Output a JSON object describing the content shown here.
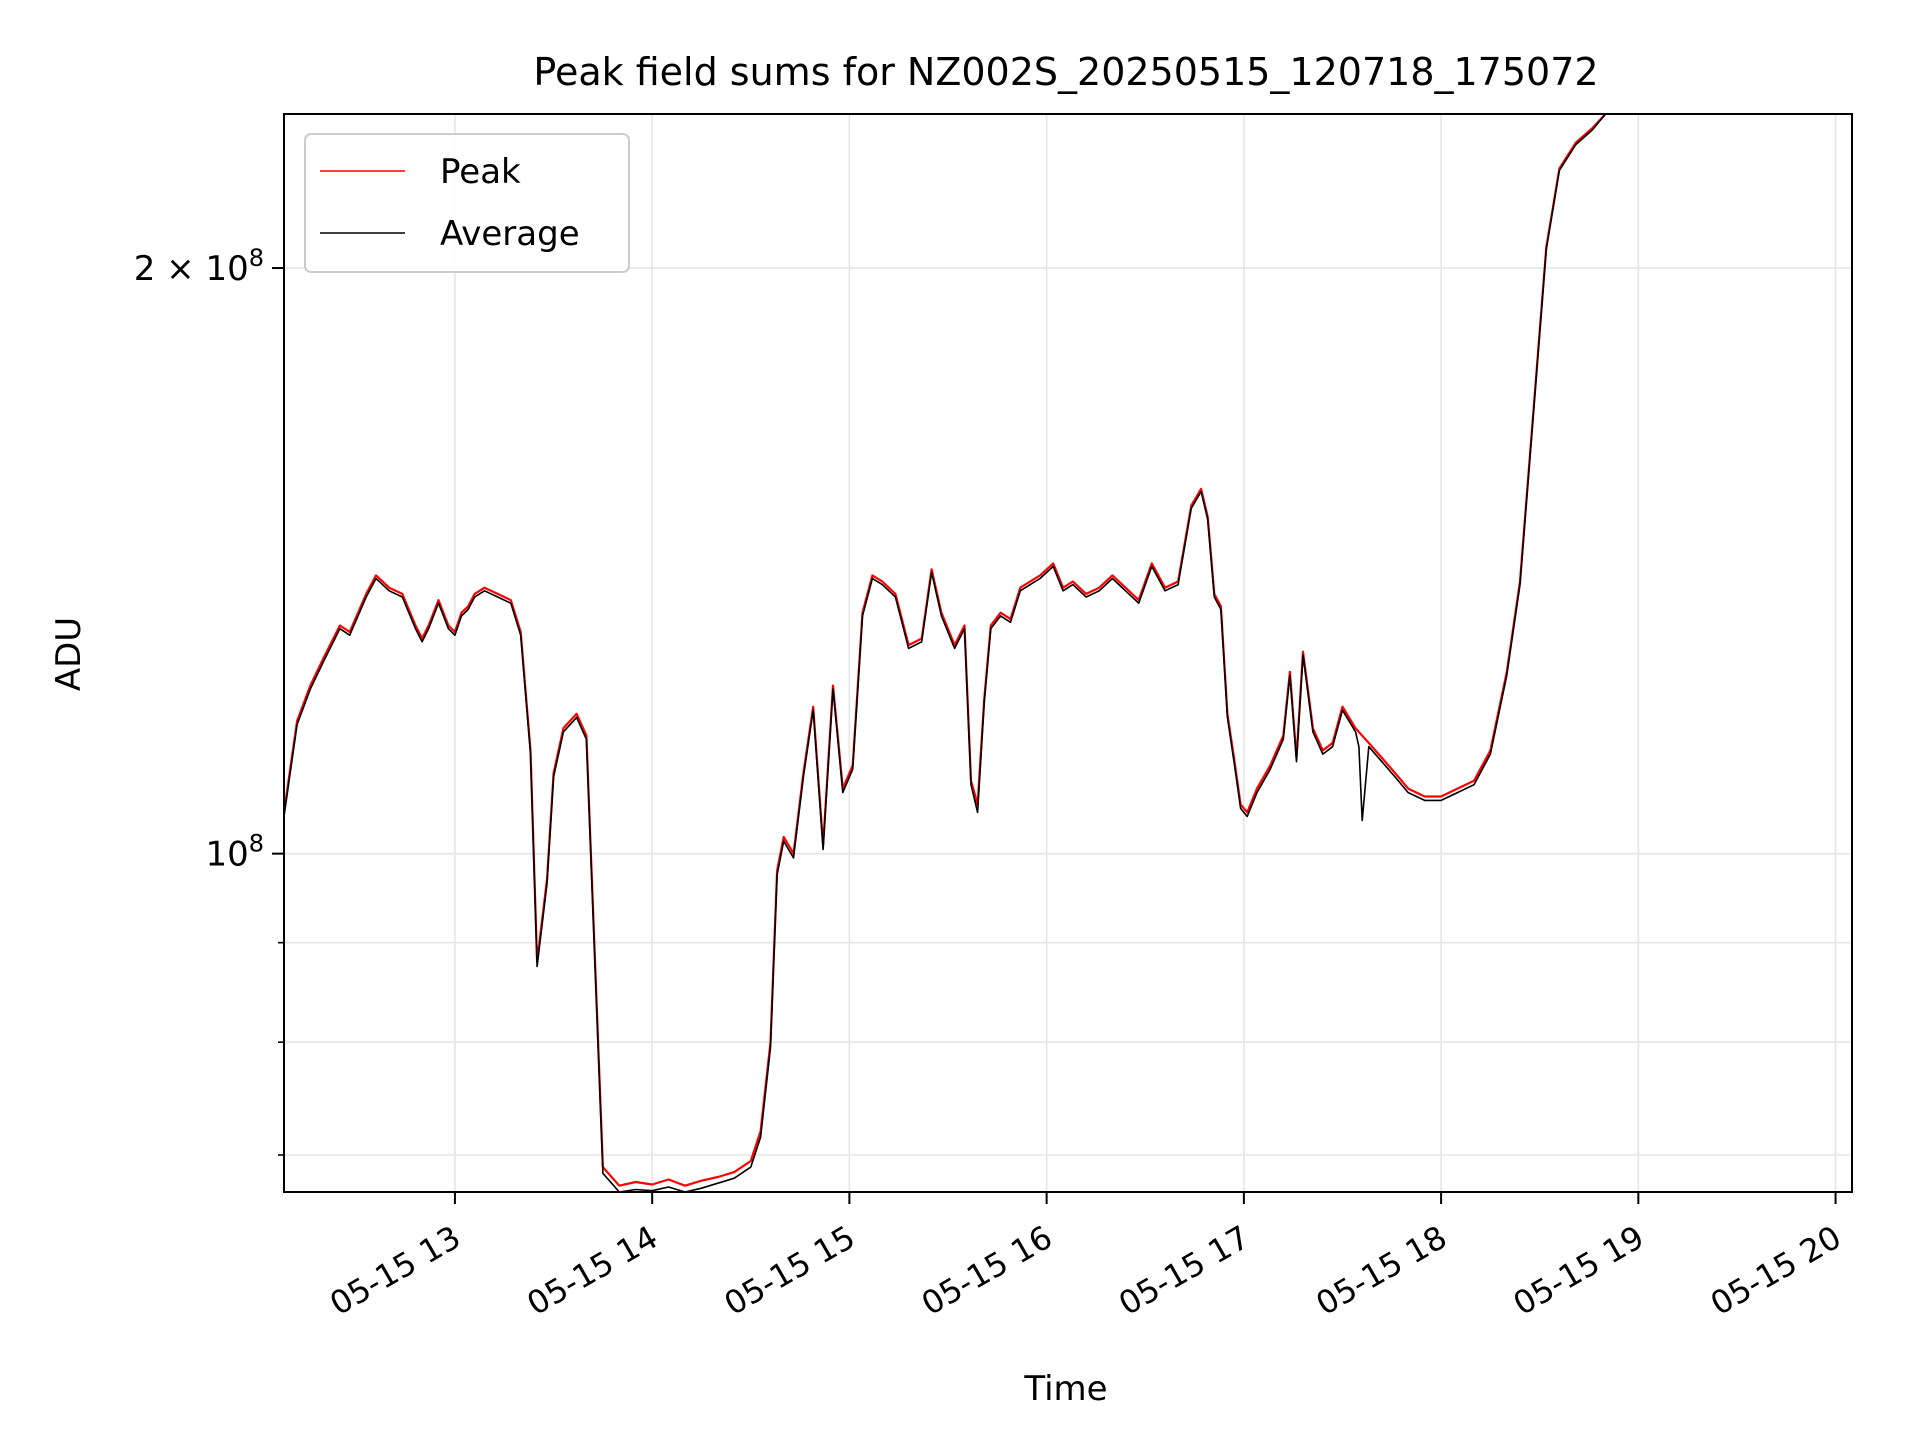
{
  "chart_data": {
    "type": "line",
    "title": "Peak field sums for NZ002S_20250515_120718_175072",
    "xlabel": "Time",
    "ylabel": "ADU",
    "xscale": "time",
    "yscale": "log",
    "xlim": [
      "2025-05-15 12:08:00",
      "2025-05-15 20:05:00"
    ],
    "ylim": [
      67000000,
      240000000
    ],
    "grid": true,
    "legend_position": "top-left",
    "x_ticks": [
      {
        "value": "2025-05-15 13:00",
        "label": "05-15 13"
      },
      {
        "value": "2025-05-15 14:00",
        "label": "05-15 14"
      },
      {
        "value": "2025-05-15 15:00",
        "label": "05-15 15"
      },
      {
        "value": "2025-05-15 16:00",
        "label": "05-15 16"
      },
      {
        "value": "2025-05-15 17:00",
        "label": "05-15 17"
      },
      {
        "value": "2025-05-15 18:00",
        "label": "05-15 18"
      },
      {
        "value": "2025-05-15 19:00",
        "label": "05-15 19"
      },
      {
        "value": "2025-05-15 20:00",
        "label": "05-15 20"
      }
    ],
    "y_ticks": [
      {
        "value": 100000000,
        "base": "10",
        "exp": "8",
        "coef": ""
      },
      {
        "value": 200000000,
        "base": "10",
        "exp": "8",
        "coef": "2 × "
      }
    ],
    "y_minor_ticks": [
      70000000,
      80000000,
      90000000,
      300000000
    ],
    "series": [
      {
        "name": "Peak",
        "color": "#ff0000",
        "x": [
          "2025-05-15 12:08",
          "2025-05-15 12:12",
          "2025-05-15 12:16",
          "2025-05-15 12:20",
          "2025-05-15 12:25",
          "2025-05-15 12:28",
          "2025-05-15 12:33",
          "2025-05-15 12:36",
          "2025-05-15 12:40",
          "2025-05-15 12:44",
          "2025-05-15 12:48",
          "2025-05-15 12:50",
          "2025-05-15 12:52",
          "2025-05-15 12:55",
          "2025-05-15 12:58",
          "2025-05-15 13:00",
          "2025-05-15 13:02",
          "2025-05-15 13:04",
          "2025-05-15 13:06",
          "2025-05-15 13:09",
          "2025-05-15 13:13",
          "2025-05-15 13:17",
          "2025-05-15 13:20",
          "2025-05-15 13:23",
          "2025-05-15 13:25",
          "2025-05-15 13:28",
          "2025-05-15 13:30",
          "2025-05-15 13:33",
          "2025-05-15 13:37",
          "2025-05-15 13:40",
          "2025-05-15 13:45",
          "2025-05-15 13:50",
          "2025-05-15 13:55",
          "2025-05-15 14:00",
          "2025-05-15 14:05",
          "2025-05-15 14:10",
          "2025-05-15 14:15",
          "2025-05-15 14:20",
          "2025-05-15 14:25",
          "2025-05-15 14:30",
          "2025-05-15 14:33",
          "2025-05-15 14:36",
          "2025-05-15 14:38",
          "2025-05-15 14:40",
          "2025-05-15 14:43",
          "2025-05-15 14:46",
          "2025-05-15 14:49",
          "2025-05-15 14:52",
          "2025-05-15 14:55",
          "2025-05-15 14:58",
          "2025-05-15 15:01",
          "2025-05-15 15:04",
          "2025-05-15 15:07",
          "2025-05-15 15:10",
          "2025-05-15 15:14",
          "2025-05-15 15:18",
          "2025-05-15 15:22",
          "2025-05-15 15:25",
          "2025-05-15 15:28",
          "2025-05-15 15:32",
          "2025-05-15 15:35",
          "2025-05-15 15:37",
          "2025-05-15 15:39",
          "2025-05-15 15:41",
          "2025-05-15 15:43",
          "2025-05-15 15:46",
          "2025-05-15 15:49",
          "2025-05-15 15:52",
          "2025-05-15 15:55",
          "2025-05-15 15:58",
          "2025-05-15 16:02",
          "2025-05-15 16:05",
          "2025-05-15 16:08",
          "2025-05-15 16:12",
          "2025-05-15 16:16",
          "2025-05-15 16:20",
          "2025-05-15 16:24",
          "2025-05-15 16:28",
          "2025-05-15 16:32",
          "2025-05-15 16:36",
          "2025-05-15 16:40",
          "2025-05-15 16:44",
          "2025-05-15 16:47",
          "2025-05-15 16:49",
          "2025-05-15 16:51",
          "2025-05-15 16:53",
          "2025-05-15 16:55",
          "2025-05-15 16:57",
          "2025-05-15 16:59",
          "2025-05-15 17:01",
          "2025-05-15 17:04",
          "2025-05-15 17:08",
          "2025-05-15 17:12",
          "2025-05-15 17:14",
          "2025-05-15 17:16",
          "2025-05-15 17:18",
          "2025-05-15 17:21",
          "2025-05-15 17:24",
          "2025-05-15 17:27",
          "2025-05-15 17:30",
          "2025-05-15 17:34",
          "2025-05-15 17:38",
          "2025-05-15 17:42",
          "2025-05-15 17:46",
          "2025-05-15 17:50",
          "2025-05-15 17:55",
          "2025-05-15 18:00",
          "2025-05-15 18:05",
          "2025-05-15 18:10",
          "2025-05-15 18:15",
          "2025-05-15 18:20",
          "2025-05-15 18:24",
          "2025-05-15 18:28",
          "2025-05-15 18:32",
          "2025-05-15 18:36",
          "2025-05-15 18:41",
          "2025-05-15 18:46",
          "2025-05-15 18:50"
        ],
        "y": [
          105000000,
          117000000,
          122000000,
          126000000,
          131000000,
          130000000,
          136000000,
          139000000,
          137000000,
          136000000,
          131000000,
          129000000,
          131000000,
          135000000,
          131000000,
          130000000,
          133000000,
          134000000,
          136000000,
          137000000,
          136000000,
          135000000,
          130000000,
          113000000,
          88000000,
          97000000,
          110000000,
          116000000,
          118000000,
          115000000,
          69000000,
          67500000,
          67800000,
          67600000,
          68000000,
          67500000,
          67900000,
          68200000,
          68600000,
          69500000,
          72000000,
          80000000,
          98000000,
          102000000,
          100000000,
          110000000,
          119000000,
          101000000,
          122000000,
          108000000,
          111000000,
          133000000,
          139000000,
          138000000,
          136000000,
          128000000,
          129000000,
          140000000,
          133000000,
          128000000,
          131000000,
          109000000,
          106000000,
          120000000,
          131000000,
          133000000,
          132000000,
          137000000,
          138000000,
          139000000,
          141000000,
          137000000,
          138000000,
          136000000,
          137000000,
          139000000,
          137000000,
          135000000,
          141000000,
          137000000,
          138000000,
          151000000,
          154000000,
          149000000,
          136000000,
          134000000,
          118000000,
          112000000,
          106000000,
          105000000,
          108000000,
          111000000,
          115000000,
          124000000,
          112000000,
          127000000,
          116000000,
          113000000,
          114000000,
          119000000,
          116000000,
          114000000,
          112000000,
          110000000,
          108000000,
          107000000,
          107000000,
          108000000,
          109000000,
          113000000,
          124000000,
          138000000,
          168000000,
          205000000,
          225000000,
          232000000,
          236000000,
          240000000
        ]
      },
      {
        "name": "Average",
        "color": "#000000",
        "x": [
          "2025-05-15 12:08",
          "2025-05-15 12:12",
          "2025-05-15 12:16",
          "2025-05-15 12:20",
          "2025-05-15 12:25",
          "2025-05-15 12:28",
          "2025-05-15 12:33",
          "2025-05-15 12:36",
          "2025-05-15 12:40",
          "2025-05-15 12:44",
          "2025-05-15 12:48",
          "2025-05-15 12:50",
          "2025-05-15 12:52",
          "2025-05-15 12:55",
          "2025-05-15 12:58",
          "2025-05-15 13:00",
          "2025-05-15 13:02",
          "2025-05-15 13:04",
          "2025-05-15 13:06",
          "2025-05-15 13:09",
          "2025-05-15 13:13",
          "2025-05-15 13:17",
          "2025-05-15 13:20",
          "2025-05-15 13:23",
          "2025-05-15 13:25",
          "2025-05-15 13:28",
          "2025-05-15 13:30",
          "2025-05-15 13:33",
          "2025-05-15 13:37",
          "2025-05-15 13:40",
          "2025-05-15 13:45",
          "2025-05-15 13:50",
          "2025-05-15 13:55",
          "2025-05-15 14:00",
          "2025-05-15 14:05",
          "2025-05-15 14:10",
          "2025-05-15 14:15",
          "2025-05-15 14:20",
          "2025-05-15 14:25",
          "2025-05-15 14:30",
          "2025-05-15 14:33",
          "2025-05-15 14:36",
          "2025-05-15 14:38",
          "2025-05-15 14:40",
          "2025-05-15 14:43",
          "2025-05-15 14:46",
          "2025-05-15 14:49",
          "2025-05-15 14:52",
          "2025-05-15 14:55",
          "2025-05-15 14:58",
          "2025-05-15 15:01",
          "2025-05-15 15:04",
          "2025-05-15 15:07",
          "2025-05-15 15:10",
          "2025-05-15 15:14",
          "2025-05-15 15:18",
          "2025-05-15 15:22",
          "2025-05-15 15:25",
          "2025-05-15 15:28",
          "2025-05-15 15:32",
          "2025-05-15 15:35",
          "2025-05-15 15:37",
          "2025-05-15 15:39",
          "2025-05-15 15:41",
          "2025-05-15 15:43",
          "2025-05-15 15:46",
          "2025-05-15 15:49",
          "2025-05-15 15:52",
          "2025-05-15 15:55",
          "2025-05-15 15:58",
          "2025-05-15 16:02",
          "2025-05-15 16:05",
          "2025-05-15 16:08",
          "2025-05-15 16:12",
          "2025-05-15 16:16",
          "2025-05-15 16:20",
          "2025-05-15 16:24",
          "2025-05-15 16:28",
          "2025-05-15 16:32",
          "2025-05-15 16:36",
          "2025-05-15 16:40",
          "2025-05-15 16:44",
          "2025-05-15 16:47",
          "2025-05-15 16:49",
          "2025-05-15 16:51",
          "2025-05-15 16:53",
          "2025-05-15 16:55",
          "2025-05-15 16:57",
          "2025-05-15 16:59",
          "2025-05-15 17:01",
          "2025-05-15 17:04",
          "2025-05-15 17:08",
          "2025-05-15 17:12",
          "2025-05-15 17:14",
          "2025-05-15 17:16",
          "2025-05-15 17:18",
          "2025-05-15 17:21",
          "2025-05-15 17:24",
          "2025-05-15 17:27",
          "2025-05-15 17:30",
          "2025-05-15 17:34",
          "2025-05-15 17:35",
          "2025-05-15 17:36",
          "2025-05-15 17:38",
          "2025-05-15 17:42",
          "2025-05-15 17:46",
          "2025-05-15 17:50",
          "2025-05-15 17:55",
          "2025-05-15 18:00",
          "2025-05-15 18:05",
          "2025-05-15 18:10",
          "2025-05-15 18:15",
          "2025-05-15 18:20",
          "2025-05-15 18:24",
          "2025-05-15 18:28",
          "2025-05-15 18:32",
          "2025-05-15 18:36",
          "2025-05-15 18:41",
          "2025-05-15 18:46",
          "2025-05-15 18:50"
        ],
        "y": [
          104500000,
          116500000,
          121500000,
          125500000,
          130500000,
          129500000,
          135500000,
          138500000,
          136500000,
          135500000,
          130500000,
          128500000,
          130500000,
          134500000,
          130500000,
          129500000,
          132500000,
          133500000,
          135500000,
          136500000,
          135500000,
          134500000,
          129500000,
          112500000,
          87500000,
          96500000,
          109500000,
          115500000,
          117500000,
          114500000,
          68500000,
          67000000,
          67200000,
          67100000,
          67400000,
          67000000,
          67300000,
          67700000,
          68100000,
          69000000,
          71500000,
          79500000,
          97500000,
          101500000,
          99500000,
          109500000,
          118500000,
          100500000,
          121500000,
          107500000,
          110500000,
          132500000,
          138500000,
          137500000,
          135500000,
          127500000,
          128500000,
          139500000,
          132500000,
          127500000,
          130500000,
          108500000,
          105000000,
          119500000,
          130500000,
          132500000,
          131500000,
          136500000,
          137500000,
          138500000,
          140500000,
          136500000,
          137500000,
          135500000,
          136500000,
          138500000,
          136500000,
          134500000,
          140500000,
          136500000,
          137500000,
          150500000,
          153500000,
          148500000,
          135500000,
          133500000,
          117500000,
          111500000,
          105500000,
          104500000,
          107500000,
          110500000,
          114500000,
          123500000,
          111500000,
          126500000,
          115500000,
          112500000,
          113500000,
          118500000,
          115500000,
          113500000,
          104000000,
          113500000,
          111500000,
          109500000,
          107500000,
          106500000,
          106500000,
          107500000,
          108500000,
          112500000,
          123500000,
          137500000,
          167500000,
          204500000,
          224500000,
          231500000,
          235500000,
          240000000
        ]
      }
    ]
  }
}
